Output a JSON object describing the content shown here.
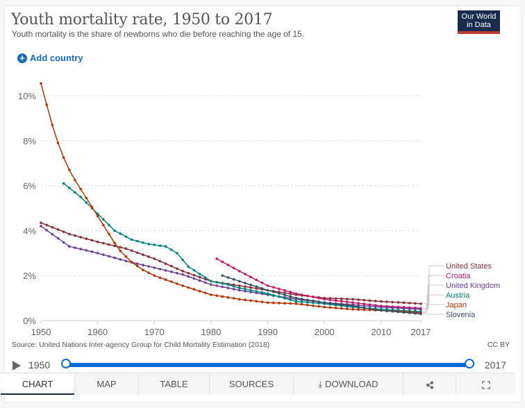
{
  "header": {
    "title": "Youth mortality rate, 1950 to 2017",
    "subtitle": "Youth mortality is the share of newborns who die before reaching the age of 15.",
    "logo_line1": "Our World",
    "logo_line2": "in Data",
    "add_country_label": "Add country",
    "add_icon": "plus-circle-icon"
  },
  "footer": {
    "source": "Source: United Nations Inter-agency Group for Child Mortality Estimation (2018)",
    "license": "CC BY"
  },
  "timeline": {
    "start_year": "1950",
    "end_year": "2017",
    "play_icon": "play-icon"
  },
  "tabs": [
    {
      "label": "CHART",
      "active": true
    },
    {
      "label": "MAP"
    },
    {
      "label": "TABLE"
    },
    {
      "label": "SOURCES"
    },
    {
      "label": "DOWNLOAD",
      "icon": "download-icon"
    },
    {
      "label": "",
      "icon": "share-icon"
    },
    {
      "label": "",
      "icon": "fullscreen-icon"
    }
  ],
  "chart_data": {
    "type": "line",
    "title": "Youth mortality rate, 1950 to 2017",
    "xlabel": "",
    "ylabel": "",
    "xlim": [
      1950,
      2017
    ],
    "ylim": [
      0,
      10.5
    ],
    "x_ticks": [
      "1950",
      "1960",
      "1970",
      "1980",
      "1990",
      "2000",
      "2010",
      "2017"
    ],
    "y_ticks": [
      "0%",
      "2%",
      "4%",
      "6%",
      "8%",
      "10%"
    ],
    "y_tick_values": [
      0,
      2,
      4,
      6,
      8,
      10
    ],
    "grid": "horizontal-dashed",
    "legend": "right (line-end labels)",
    "series": [
      {
        "name": "United States",
        "color": "#883039",
        "keypoints": [
          [
            1950,
            4.35
          ],
          [
            1955,
            3.85
          ],
          [
            1960,
            3.5
          ],
          [
            1965,
            3.2
          ],
          [
            1970,
            2.75
          ],
          [
            1975,
            2.2
          ],
          [
            1980,
            1.75
          ],
          [
            1985,
            1.55
          ],
          [
            1990,
            1.35
          ],
          [
            1995,
            1.15
          ],
          [
            2000,
            1.0
          ],
          [
            2005,
            0.95
          ],
          [
            2010,
            0.85
          ],
          [
            2017,
            0.75
          ]
        ]
      },
      {
        "name": "Croatia",
        "color": "#c0186b",
        "keypoints": [
          [
            1981,
            2.75
          ],
          [
            1985,
            2.2
          ],
          [
            1990,
            1.55
          ],
          [
            1995,
            1.2
          ],
          [
            2000,
            0.95
          ],
          [
            2005,
            0.8
          ],
          [
            2010,
            0.65
          ],
          [
            2017,
            0.55
          ]
        ]
      },
      {
        "name": "United Kingdom",
        "color": "#6d3e91",
        "keypoints": [
          [
            1950,
            4.2
          ],
          [
            1955,
            3.3
          ],
          [
            1960,
            3.0
          ],
          [
            1965,
            2.65
          ],
          [
            1970,
            2.35
          ],
          [
            1975,
            2.05
          ],
          [
            1980,
            1.6
          ],
          [
            1985,
            1.35
          ],
          [
            1990,
            1.15
          ],
          [
            1995,
            0.95
          ],
          [
            2000,
            0.8
          ],
          [
            2005,
            0.7
          ],
          [
            2010,
            0.6
          ],
          [
            2017,
            0.5
          ]
        ]
      },
      {
        "name": "Austria",
        "color": "#00847e",
        "keypoints": [
          [
            1954,
            6.1
          ],
          [
            1957,
            5.5
          ],
          [
            1960,
            4.75
          ],
          [
            1963,
            4.0
          ],
          [
            1966,
            3.6
          ],
          [
            1969,
            3.4
          ],
          [
            1972,
            3.3
          ],
          [
            1974,
            3.0
          ],
          [
            1976,
            2.4
          ],
          [
            1980,
            1.75
          ],
          [
            1983,
            1.6
          ],
          [
            1985,
            1.45
          ],
          [
            1990,
            1.2
          ],
          [
            1995,
            0.85
          ],
          [
            2000,
            0.75
          ],
          [
            2005,
            0.6
          ],
          [
            2010,
            0.5
          ],
          [
            2017,
            0.4
          ]
        ]
      },
      {
        "name": "Japan",
        "color": "#b13507",
        "keypoints": [
          [
            1950,
            10.55
          ],
          [
            1951,
            9.6
          ],
          [
            1952,
            8.7
          ],
          [
            1953,
            7.9
          ],
          [
            1954,
            7.25
          ],
          [
            1955,
            6.7
          ],
          [
            1956,
            6.25
          ],
          [
            1957,
            5.85
          ],
          [
            1958,
            5.45
          ],
          [
            1959,
            5.05
          ],
          [
            1960,
            4.65
          ],
          [
            1961,
            4.25
          ],
          [
            1962,
            3.85
          ],
          [
            1963,
            3.45
          ],
          [
            1964,
            3.1
          ],
          [
            1966,
            2.6
          ],
          [
            1968,
            2.25
          ],
          [
            1970,
            2.0
          ],
          [
            1975,
            1.55
          ],
          [
            1980,
            1.15
          ],
          [
            1985,
            0.95
          ],
          [
            1990,
            0.8
          ],
          [
            1995,
            0.75
          ],
          [
            2000,
            0.6
          ],
          [
            2005,
            0.5
          ],
          [
            2010,
            0.45
          ],
          [
            2017,
            0.35
          ]
        ]
      },
      {
        "name": "Slovenia",
        "color": "#3b4f62",
        "keypoints": [
          [
            1982,
            2.0
          ],
          [
            1985,
            1.75
          ],
          [
            1990,
            1.35
          ],
          [
            1995,
            1.0
          ],
          [
            2000,
            0.8
          ],
          [
            2005,
            0.65
          ],
          [
            2010,
            0.45
          ],
          [
            2017,
            0.3
          ]
        ]
      }
    ]
  }
}
